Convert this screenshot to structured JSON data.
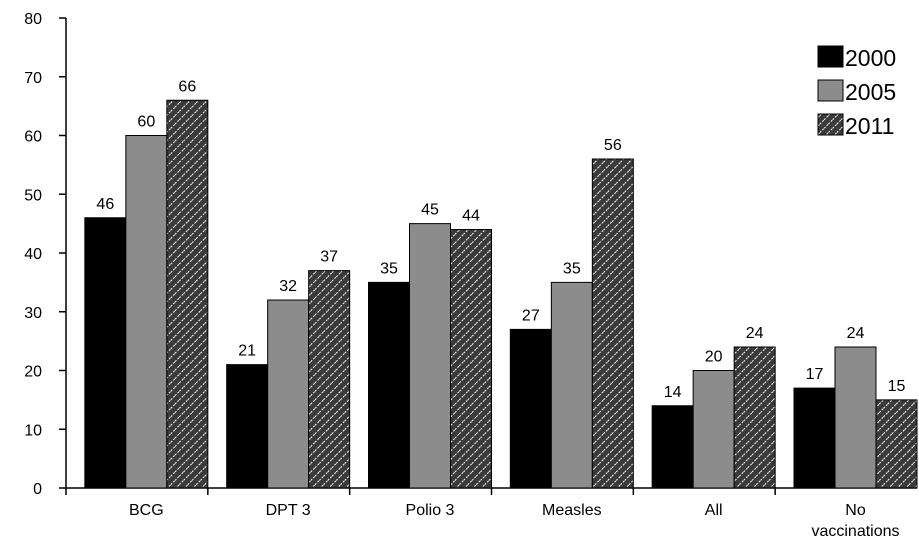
{
  "chart_data": {
    "type": "bar",
    "title": "",
    "xlabel": "",
    "ylabel": "",
    "ylim": [
      0,
      80
    ],
    "yticks": [
      0,
      10,
      20,
      30,
      40,
      50,
      60,
      70,
      80
    ],
    "categories": [
      "BCG",
      "DPT 3",
      "Polio 3",
      "Measles",
      "All",
      "No vaccinations"
    ],
    "series": [
      {
        "name": "2000",
        "color": "#000000",
        "pattern": "solid",
        "values": [
          46,
          21,
          35,
          27,
          14,
          17
        ]
      },
      {
        "name": "2005",
        "color": "#8c8c8c",
        "pattern": "solid",
        "values": [
          60,
          32,
          45,
          35,
          20,
          24
        ]
      },
      {
        "name": "2011",
        "color": "#3a3a3a",
        "pattern": "hatched",
        "values": [
          66,
          37,
          44,
          56,
          24,
          15
        ]
      }
    ],
    "legend": "top-right",
    "grid": false,
    "data_labels": true
  }
}
